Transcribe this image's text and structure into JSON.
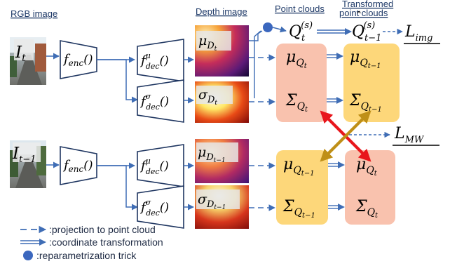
{
  "captions": {
    "rgb": "RGB image",
    "depth": "Depth image",
    "points": "Point clouds",
    "transformed_l1": "Transformed",
    "transformed_l2": "point clouds"
  },
  "rows": {
    "top": {
      "frame_index": "t",
      "shifted_index": "t−1"
    },
    "bottom": {
      "frame_index": "t−1",
      "shifted_index": "t"
    }
  },
  "symbols": {
    "image": "I",
    "encoder": "f",
    "encoder_sub": "enc",
    "call": "()",
    "decoder": "f",
    "decoder_sub": "dec",
    "mu": "μ",
    "sigma": "σ",
    "Sigma": "Σ",
    "depth_var": "D",
    "cloud_var": "Q",
    "sample_sup": "(s)",
    "img_loss": "img",
    "mw_loss": "MW",
    "loss": "L"
  },
  "legend": {
    "dashed": ":projection to point cloud",
    "double": ":coordinate transformation",
    "dot": ":reparametrization trick"
  },
  "colors": {
    "arrow": "#3f6db5",
    "box_stroke": "#1e3560",
    "pink": "#f9c2ae",
    "yellow": "#fdd77a",
    "red_arrow": "#e8161c",
    "gold_arrow": "#bf8f17"
  }
}
